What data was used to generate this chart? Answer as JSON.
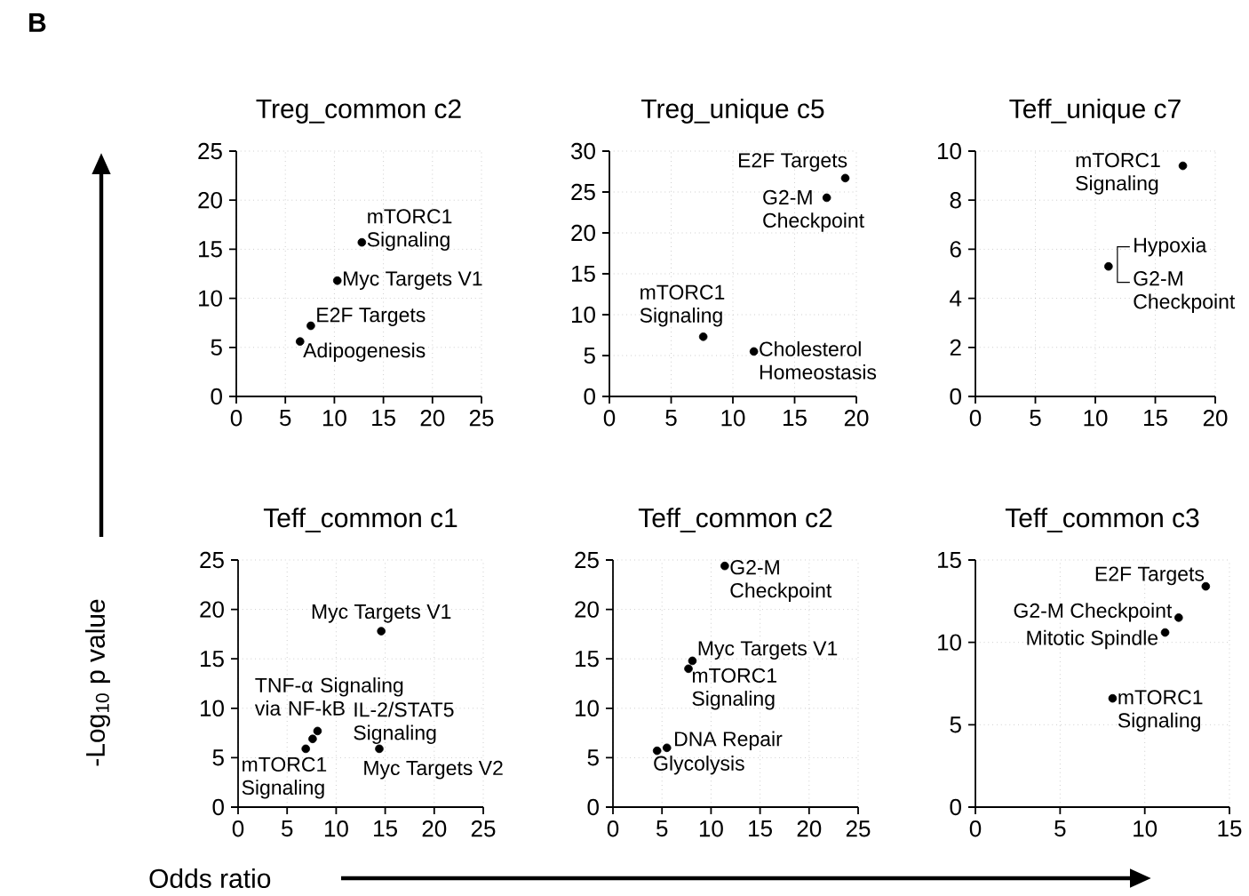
{
  "chart_data": [
    {
      "type": "scatter",
      "title": "Treg_common c2",
      "x": [
        12.8,
        10.3,
        7.6,
        6.5
      ],
      "values": [
        15.7,
        11.8,
        7.2,
        5.6
      ],
      "color": "#000000",
      "marker": "circle",
      "grid": true,
      "xlim": [
        0,
        25
      ],
      "ylim": [
        0,
        25
      ],
      "xticks": [
        0,
        5,
        10,
        15,
        20,
        25
      ],
      "yticks": [
        0,
        5,
        10,
        15,
        20,
        25
      ],
      "annotations": [
        "B",
        {
          "text": "mTORC1 Signaling",
          "x": 12.8,
          "y": 15.7
        },
        {
          "text": "Myc Targets V1",
          "x": 10.3,
          "y": 11.8
        },
        {
          "text": "E2F Targets",
          "x": 7.6,
          "y": 7.2
        },
        {
          "text": "Adipogenesis",
          "x": 6.5,
          "y": 5.6
        }
      ]
    },
    {
      "type": "scatter",
      "title": "Treg_unique c5",
      "x": [
        19.1,
        17.6,
        7.6,
        11.7
      ],
      "values": [
        26.7,
        24.3,
        7.3,
        5.5
      ],
      "color": "#000000",
      "marker": "circle",
      "grid": true,
      "xlim": [
        0,
        20
      ],
      "ylim": [
        0,
        30
      ],
      "xticks": [
        0,
        5,
        10,
        15,
        20
      ],
      "yticks": [
        0,
        5,
        10,
        15,
        20,
        25,
        30
      ],
      "annotations": [
        {
          "text": "E2F Targets",
          "x": 19.1,
          "y": 26.7
        },
        {
          "text": "G2-M Checkpoint",
          "x": 17.6,
          "y": 24.3
        },
        {
          "text": "mTORC1 Signaling",
          "x": 7.6,
          "y": 7.3
        },
        {
          "text": "Cholesterol Homeostasis",
          "x": 11.7,
          "y": 5.5
        }
      ]
    },
    {
      "type": "scatter",
      "title": "Teff_unique c7",
      "x": [
        17.3,
        11.1
      ],
      "values": [
        9.4,
        5.3
      ],
      "color": "#000000",
      "marker": "circle",
      "grid": true,
      "xlim": [
        0,
        20
      ],
      "ylim": [
        0,
        10
      ],
      "xticks": [
        0,
        5,
        10,
        15,
        20
      ],
      "yticks": [
        0,
        2,
        4,
        6,
        8,
        10
      ],
      "annotations": [
        {
          "text": "mTORC1 Signaling",
          "x": 17.3,
          "y": 9.4
        },
        {
          "text": "Hypoxia",
          "x": 11.1,
          "y": 5.3
        },
        {
          "text": "G2-M Checkpoint",
          "x": 11.1,
          "y": 5.3
        }
      ]
    },
    {
      "type": "scatter",
      "title": "Teff_common c1",
      "xlabel": "Odds ratio",
      "ylabel": "-Log$_{10}$ p value",
      "x": [
        14.6,
        8.1,
        7.6,
        6.9,
        14.4
      ],
      "values": [
        17.8,
        7.7,
        6.9,
        5.9,
        5.9
      ],
      "color": "#000000",
      "marker": "circle",
      "grid": true,
      "xlim": [
        0,
        25
      ],
      "ylim": [
        0,
        25
      ],
      "xticks": [
        0,
        5,
        10,
        15,
        20,
        25
      ],
      "yticks": [
        0,
        5,
        10,
        15,
        20,
        25
      ],
      "annotations": [
        {
          "text": "Myc Targets V1",
          "x": 14.6,
          "y": 17.8
        },
        {
          "text": "TNF-α Signaling via NF-kB",
          "x": 8.1,
          "y": 7.7
        },
        {
          "text": "IL-2/STAT5 Signaling",
          "x": 7.6,
          "y": 6.9
        },
        {
          "text": "mTORC1 Signaling",
          "x": 6.9,
          "y": 5.9
        },
        {
          "text": "Myc Targets V2",
          "x": 14.4,
          "y": 5.9
        }
      ]
    },
    {
      "type": "scatter",
      "title": "Teff_common c2",
      "x": [
        11.4,
        8.1,
        7.7,
        5.5,
        4.5
      ],
      "values": [
        24.4,
        14.8,
        14.0,
        6.0,
        5.7
      ],
      "color": "#000000",
      "marker": "circle",
      "grid": true,
      "xlim": [
        0,
        25
      ],
      "ylim": [
        0,
        25
      ],
      "xticks": [
        0,
        5,
        10,
        15,
        20,
        25
      ],
      "yticks": [
        0,
        5,
        10,
        15,
        20,
        25
      ],
      "annotations": [
        {
          "text": "G2-M Checkpoint",
          "x": 11.4,
          "y": 24.4
        },
        {
          "text": "Myc Targets V1",
          "x": 8.1,
          "y": 14.8
        },
        {
          "text": "mTORC1 Signaling",
          "x": 7.7,
          "y": 14.0
        },
        {
          "text": "DNA Repair",
          "x": 5.5,
          "y": 6.0
        },
        {
          "text": "Glycolysis",
          "x": 4.5,
          "y": 5.7
        }
      ]
    },
    {
      "type": "scatter",
      "title": "Teff_common c3",
      "x": [
        13.6,
        12.0,
        11.2,
        8.1
      ],
      "values": [
        13.4,
        11.5,
        10.6,
        6.6
      ],
      "color": "#000000",
      "marker": "circle",
      "grid": true,
      "xlim": [
        0,
        15
      ],
      "ylim": [
        0,
        15
      ],
      "xticks": [
        0,
        5,
        10,
        15
      ],
      "yticks": [
        0,
        5,
        10,
        15
      ],
      "annotations": [
        {
          "text": "E2F Targets",
          "x": 13.6,
          "y": 13.4
        },
        {
          "text": "G2-M Checkpoint",
          "x": 12.0,
          "y": 11.5
        },
        {
          "text": "Mitotic Spindle",
          "x": 11.2,
          "y": 10.6
        },
        {
          "text": "mTORC1 Signaling",
          "x": 8.1,
          "y": 6.6
        }
      ]
    }
  ]
}
